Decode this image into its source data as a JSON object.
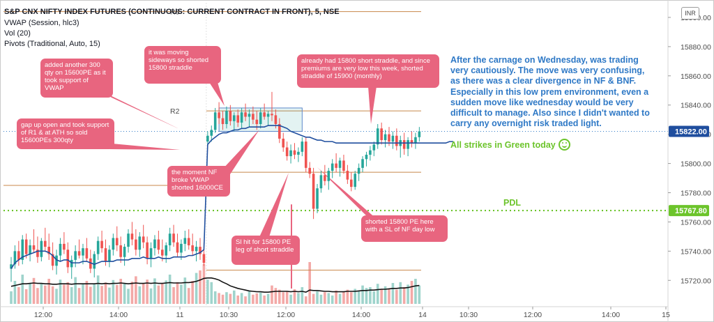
{
  "legend": {
    "title": "S&P CNX NIFTY INDEX FUTURES (CONTINUOUS: CURRENT CONTRACT IN FRONT), 5, NSE",
    "line2": "VWAP (Session, hlc3)",
    "line3": "Vol (20)",
    "line4": "Pivots (Traditional, Auto, 15)"
  },
  "currency_button": "INR",
  "pivot_labels": {
    "r3": "R3",
    "r2": "R2"
  },
  "callouts": {
    "c1": "gap up open and took support of R1 & at ATH so sold 15600PEs 300qty",
    "c2": "added another 300 qty  on 15600PE as it took support of VWAP",
    "c3": "it was moving sideways so shorted 15800 straddle",
    "c4": "the moment NF broke VWAP shorted 16000CE",
    "c5": "Sl hit for 15800 PE leg of short straddle",
    "c6": "already had 15800 short straddle, and since premiums are very low this week, shorted straddle of 15900 (monthly)",
    "c7": "shorted 15800 PE here with a SL of NF day low"
  },
  "note_text": "After the carnage on Wednesday, was trading very cautiously. The move was very confusing, as there was a clear divergence in NF & BNF. Especially in this low prem environment, even a sudden move like wednesday would be very difficult to manage. Also since I didn't wanted to carry any overnight risk traded light.",
  "green_text": "All strikes in Green today",
  "pdl_label": "PDL",
  "colors": {
    "up": "#26a69a",
    "down": "#ef5350",
    "vwap": "#1f4e9e",
    "pdl": "#6cc42b",
    "pivot": "#c8874a",
    "callout": "#e8657f",
    "note": "#2f79c6",
    "badge_dark": "#1f4e9e"
  },
  "chart_data": {
    "type": "candlestick",
    "x_ticks": [
      "12:00",
      "14:00",
      "11",
      "10:30",
      "12:00",
      "14:00",
      "14",
      "10:30",
      "12:00",
      "14:00",
      "15"
    ],
    "y_ticks": [
      15720,
      15740,
      15760,
      15780,
      15800,
      15820,
      15840,
      15860,
      15880,
      15900
    ],
    "ylim": [
      15702,
      15910
    ],
    "last_price": {
      "value": 15822.0,
      "label": "15822.00"
    },
    "pdl": {
      "value": 15767.8,
      "label": "15767.80"
    },
    "pivots": [
      {
        "name": "R3",
        "value": 15904,
        "session": "previous"
      },
      {
        "name": "R2",
        "value": 15836,
        "session": "current"
      },
      {
        "name": "R1",
        "value": 15794,
        "session": "current"
      },
      {
        "name": "P",
        "value": 15727,
        "session": "current"
      },
      {
        "name": "level",
        "value": 15785,
        "session": "previous"
      }
    ],
    "candles": [
      {
        "o": 15728,
        "h": 15736,
        "l": 15719,
        "c": 15731
      },
      {
        "o": 15731,
        "h": 15744,
        "l": 15728,
        "c": 15740
      },
      {
        "o": 15740,
        "h": 15747,
        "l": 15730,
        "c": 15734
      },
      {
        "o": 15734,
        "h": 15751,
        "l": 15731,
        "c": 15748
      },
      {
        "o": 15748,
        "h": 15752,
        "l": 15735,
        "c": 15738
      },
      {
        "o": 15738,
        "h": 15748,
        "l": 15733,
        "c": 15744
      },
      {
        "o": 15744,
        "h": 15755,
        "l": 15739,
        "c": 15741
      },
      {
        "o": 15741,
        "h": 15750,
        "l": 15732,
        "c": 15736
      },
      {
        "o": 15736,
        "h": 15749,
        "l": 15733,
        "c": 15747
      },
      {
        "o": 15747,
        "h": 15756,
        "l": 15740,
        "c": 15743
      },
      {
        "o": 15743,
        "h": 15752,
        "l": 15734,
        "c": 15738
      },
      {
        "o": 15738,
        "h": 15746,
        "l": 15727,
        "c": 15730
      },
      {
        "o": 15730,
        "h": 15741,
        "l": 15724,
        "c": 15737
      },
      {
        "o": 15737,
        "h": 15749,
        "l": 15733,
        "c": 15745
      },
      {
        "o": 15745,
        "h": 15753,
        "l": 15738,
        "c": 15741
      },
      {
        "o": 15741,
        "h": 15746,
        "l": 15725,
        "c": 15729
      },
      {
        "o": 15729,
        "h": 15737,
        "l": 15721,
        "c": 15734
      },
      {
        "o": 15734,
        "h": 15744,
        "l": 15729,
        "c": 15740
      },
      {
        "o": 15740,
        "h": 15748,
        "l": 15735,
        "c": 15737
      },
      {
        "o": 15737,
        "h": 15745,
        "l": 15731,
        "c": 15742
      },
      {
        "o": 15742,
        "h": 15749,
        "l": 15733,
        "c": 15735
      },
      {
        "o": 15735,
        "h": 15741,
        "l": 15725,
        "c": 15728
      },
      {
        "o": 15728,
        "h": 15740,
        "l": 15722,
        "c": 15738
      },
      {
        "o": 15738,
        "h": 15750,
        "l": 15734,
        "c": 15747
      },
      {
        "o": 15747,
        "h": 15754,
        "l": 15739,
        "c": 15742
      },
      {
        "o": 15742,
        "h": 15748,
        "l": 15730,
        "c": 15733
      },
      {
        "o": 15733,
        "h": 15744,
        "l": 15729,
        "c": 15741
      },
      {
        "o": 15741,
        "h": 15752,
        "l": 15737,
        "c": 15749
      },
      {
        "o": 15749,
        "h": 15757,
        "l": 15740,
        "c": 15744
      },
      {
        "o": 15744,
        "h": 15750,
        "l": 15732,
        "c": 15736
      },
      {
        "o": 15736,
        "h": 15745,
        "l": 15730,
        "c": 15743
      },
      {
        "o": 15743,
        "h": 15755,
        "l": 15739,
        "c": 15752
      },
      {
        "o": 15752,
        "h": 15760,
        "l": 15744,
        "c": 15748
      },
      {
        "o": 15748,
        "h": 15755,
        "l": 15737,
        "c": 15741
      },
      {
        "o": 15741,
        "h": 15753,
        "l": 15736,
        "c": 15750
      },
      {
        "o": 15750,
        "h": 15758,
        "l": 15742,
        "c": 15746
      },
      {
        "o": 15746,
        "h": 15750,
        "l": 15731,
        "c": 15735
      },
      {
        "o": 15735,
        "h": 15746,
        "l": 15729,
        "c": 15742
      },
      {
        "o": 15742,
        "h": 15751,
        "l": 15737,
        "c": 15748
      },
      {
        "o": 15748,
        "h": 15754,
        "l": 15738,
        "c": 15741
      },
      {
        "o": 15741,
        "h": 15748,
        "l": 15733,
        "c": 15737
      },
      {
        "o": 15737,
        "h": 15746,
        "l": 15732,
        "c": 15744
      },
      {
        "o": 15744,
        "h": 15756,
        "l": 15740,
        "c": 15752
      },
      {
        "o": 15752,
        "h": 15758,
        "l": 15743,
        "c": 15746
      },
      {
        "o": 15746,
        "h": 15752,
        "l": 15736,
        "c": 15739
      },
      {
        "o": 15739,
        "h": 15748,
        "l": 15734,
        "c": 15745
      },
      {
        "o": 15745,
        "h": 15754,
        "l": 15740,
        "c": 15749
      },
      {
        "o": 15749,
        "h": 15755,
        "l": 15741,
        "c": 15744
      },
      {
        "o": 15744,
        "h": 15752,
        "l": 15737,
        "c": 15740
      },
      {
        "o": 15740,
        "h": 15747,
        "l": 15733,
        "c": 15743
      },
      {
        "o": 15743,
        "h": 15749,
        "l": 15734,
        "c": 15738
      },
      {
        "o": 15738,
        "h": 15746,
        "l": 15730,
        "c": 15732
      },
      {
        "o": 15815,
        "h": 15822,
        "l": 15811,
        "c": 15819
      },
      {
        "o": 15819,
        "h": 15826,
        "l": 15815,
        "c": 15823
      },
      {
        "o": 15823,
        "h": 15838,
        "l": 15821,
        "c": 15835
      },
      {
        "o": 15835,
        "h": 15842,
        "l": 15827,
        "c": 15831
      },
      {
        "o": 15831,
        "h": 15836,
        "l": 15823,
        "c": 15827
      },
      {
        "o": 15827,
        "h": 15839,
        "l": 15824,
        "c": 15836
      },
      {
        "o": 15836,
        "h": 15840,
        "l": 15826,
        "c": 15829
      },
      {
        "o": 15829,
        "h": 15835,
        "l": 15822,
        "c": 15833
      },
      {
        "o": 15833,
        "h": 15837,
        "l": 15825,
        "c": 15828
      },
      {
        "o": 15828,
        "h": 15838,
        "l": 15824,
        "c": 15835
      },
      {
        "o": 15835,
        "h": 15841,
        "l": 15829,
        "c": 15832
      },
      {
        "o": 15832,
        "h": 15837,
        "l": 15825,
        "c": 15834
      },
      {
        "o": 15834,
        "h": 15839,
        "l": 15827,
        "c": 15830
      },
      {
        "o": 15830,
        "h": 15836,
        "l": 15823,
        "c": 15827
      },
      {
        "o": 15827,
        "h": 15838,
        "l": 15824,
        "c": 15835
      },
      {
        "o": 15835,
        "h": 15841,
        "l": 15830,
        "c": 15832
      },
      {
        "o": 15832,
        "h": 15836,
        "l": 15826,
        "c": 15834
      },
      {
        "o": 15834,
        "h": 15849,
        "l": 15829,
        "c": 15833
      },
      {
        "o": 15833,
        "h": 15837,
        "l": 15824,
        "c": 15827
      },
      {
        "o": 15827,
        "h": 15831,
        "l": 15814,
        "c": 15817
      },
      {
        "o": 15817,
        "h": 15821,
        "l": 15808,
        "c": 15811
      },
      {
        "o": 15811,
        "h": 15815,
        "l": 15802,
        "c": 15805
      },
      {
        "o": 15805,
        "h": 15813,
        "l": 15800,
        "c": 15809
      },
      {
        "o": 15809,
        "h": 15814,
        "l": 15803,
        "c": 15806
      },
      {
        "o": 15806,
        "h": 15811,
        "l": 15801,
        "c": 15808
      },
      {
        "o": 15808,
        "h": 15818,
        "l": 15805,
        "c": 15815
      },
      {
        "o": 15815,
        "h": 15818,
        "l": 15794,
        "c": 15797
      },
      {
        "o": 15797,
        "h": 15801,
        "l": 15790,
        "c": 15793
      },
      {
        "o": 15793,
        "h": 15797,
        "l": 15762,
        "c": 15769
      },
      {
        "o": 15769,
        "h": 15786,
        "l": 15766,
        "c": 15783
      },
      {
        "o": 15783,
        "h": 15795,
        "l": 15780,
        "c": 15792
      },
      {
        "o": 15792,
        "h": 15799,
        "l": 15785,
        "c": 15788
      },
      {
        "o": 15788,
        "h": 15797,
        "l": 15782,
        "c": 15795
      },
      {
        "o": 15795,
        "h": 15803,
        "l": 15790,
        "c": 15800
      },
      {
        "o": 15800,
        "h": 15807,
        "l": 15794,
        "c": 15797
      },
      {
        "o": 15797,
        "h": 15804,
        "l": 15791,
        "c": 15802
      },
      {
        "o": 15802,
        "h": 15806,
        "l": 15793,
        "c": 15795
      },
      {
        "o": 15795,
        "h": 15799,
        "l": 15786,
        "c": 15789
      },
      {
        "o": 15789,
        "h": 15794,
        "l": 15781,
        "c": 15784
      },
      {
        "o": 15784,
        "h": 15795,
        "l": 15782,
        "c": 15793
      },
      {
        "o": 15793,
        "h": 15800,
        "l": 15788,
        "c": 15797
      },
      {
        "o": 15797,
        "h": 15805,
        "l": 15794,
        "c": 15803
      },
      {
        "o": 15803,
        "h": 15808,
        "l": 15798,
        "c": 15806
      },
      {
        "o": 15806,
        "h": 15812,
        "l": 15802,
        "c": 15809
      },
      {
        "o": 15809,
        "h": 15815,
        "l": 15805,
        "c": 15813
      },
      {
        "o": 15813,
        "h": 15827,
        "l": 15810,
        "c": 15824
      },
      {
        "o": 15824,
        "h": 15828,
        "l": 15813,
        "c": 15816
      },
      {
        "o": 15816,
        "h": 15823,
        "l": 15811,
        "c": 15820
      },
      {
        "o": 15820,
        "h": 15825,
        "l": 15812,
        "c": 15815
      },
      {
        "o": 15815,
        "h": 15822,
        "l": 15810,
        "c": 15819
      },
      {
        "o": 15819,
        "h": 15824,
        "l": 15809,
        "c": 15812
      },
      {
        "o": 15812,
        "h": 15819,
        "l": 15804,
        "c": 15816
      },
      {
        "o": 15816,
        "h": 15821,
        "l": 15806,
        "c": 15810
      },
      {
        "o": 15810,
        "h": 15818,
        "l": 15805,
        "c": 15816
      },
      {
        "o": 15816,
        "h": 15822,
        "l": 15811,
        "c": 15814
      },
      {
        "o": 15814,
        "h": 15821,
        "l": 15810,
        "c": 15818
      },
      {
        "o": 15818,
        "h": 15825,
        "l": 15815,
        "c": 15822
      }
    ],
    "vwap": [
      15728,
      15732,
      15734,
      15736,
      15737,
      15738,
      15739,
      15740,
      15740,
      15740,
      15739,
      15737,
      15734,
      15733,
      15734,
      15734,
      15732,
      15732,
      15732,
      15733,
      15733,
      15732,
      15731,
      15732,
      15733,
      15733,
      15733,
      15733,
      15734,
      15734,
      15734,
      15734,
      15735,
      15735,
      15735,
      15736,
      15735,
      15735,
      15735,
      15736,
      15735,
      15735,
      15735,
      15736,
      15736,
      15736,
      15736,
      15737,
      15737,
      15738,
      15739,
      15741,
      15813,
      15816,
      15818,
      15820,
      15821,
      15821,
      15822,
      15823,
      15823,
      15824,
      15824,
      15825,
      15825,
      15825,
      15825,
      15825,
      15826,
      15826,
      15826,
      15826,
      15825,
      15824,
      15822,
      15821,
      15820,
      15819,
      15818,
      15818,
      15817,
      15816,
      15816,
      15815,
      15815,
      15815,
      15814,
      15814,
      15814,
      15814,
      15814,
      15814,
      15814,
      15814,
      15814,
      15814,
      15814,
      15814,
      15814,
      15814,
      15814,
      15814,
      15814,
      15814,
      15814,
      15814,
      15814,
      15814,
      15814,
      15814,
      15814,
      15814,
      15814,
      15814,
      15814,
      15814,
      15815,
      15815
    ],
    "volume": [
      30,
      55,
      40,
      70,
      35,
      48,
      62,
      38,
      50,
      44,
      60,
      42,
      36,
      58,
      46,
      52,
      40,
      64,
      38,
      49,
      55,
      41,
      47,
      68,
      43,
      51,
      39,
      57,
      45,
      60,
      48,
      36,
      53,
      66,
      42,
      50,
      58,
      37,
      61,
      44,
      49,
      56,
      70,
      40,
      52,
      46,
      63,
      38,
      55,
      74,
      80,
      95,
      58,
      52,
      30,
      26,
      22,
      28,
      24,
      32,
      20,
      26,
      18,
      30,
      22,
      25,
      27,
      20,
      24,
      44,
      38,
      34,
      28,
      30,
      22,
      35,
      26,
      40,
      18,
      100,
      24,
      30,
      22,
      28,
      26,
      20,
      32,
      24,
      30,
      34,
      28,
      36,
      32,
      44,
      38,
      40,
      30,
      48,
      35,
      42,
      36,
      50,
      34,
      52,
      40,
      46,
      55,
      60,
      44
    ],
    "vol_ma": [
      42,
      44,
      46,
      48,
      48,
      49,
      50,
      49,
      49,
      48,
      48,
      47,
      47,
      48,
      48,
      48,
      47,
      48,
      48,
      48,
      48,
      48,
      48,
      49,
      48,
      49,
      48,
      49,
      49,
      50,
      49,
      48,
      49,
      50,
      49,
      49,
      50,
      49,
      50,
      49,
      49,
      50,
      51,
      50,
      50,
      50,
      51,
      51,
      52,
      54,
      57,
      61,
      62,
      62,
      60,
      57,
      52,
      48,
      43,
      40,
      37,
      35,
      33,
      31,
      30,
      29,
      29,
      28,
      28,
      29,
      30,
      30,
      30,
      30,
      29,
      30,
      29,
      30,
      28,
      33,
      32,
      32,
      31,
      30,
      30,
      29,
      29,
      29,
      29,
      30,
      30,
      30,
      31,
      32,
      32,
      33,
      33,
      34,
      35,
      35,
      36,
      37,
      37,
      38,
      38,
      39,
      41,
      43,
      44
    ]
  }
}
